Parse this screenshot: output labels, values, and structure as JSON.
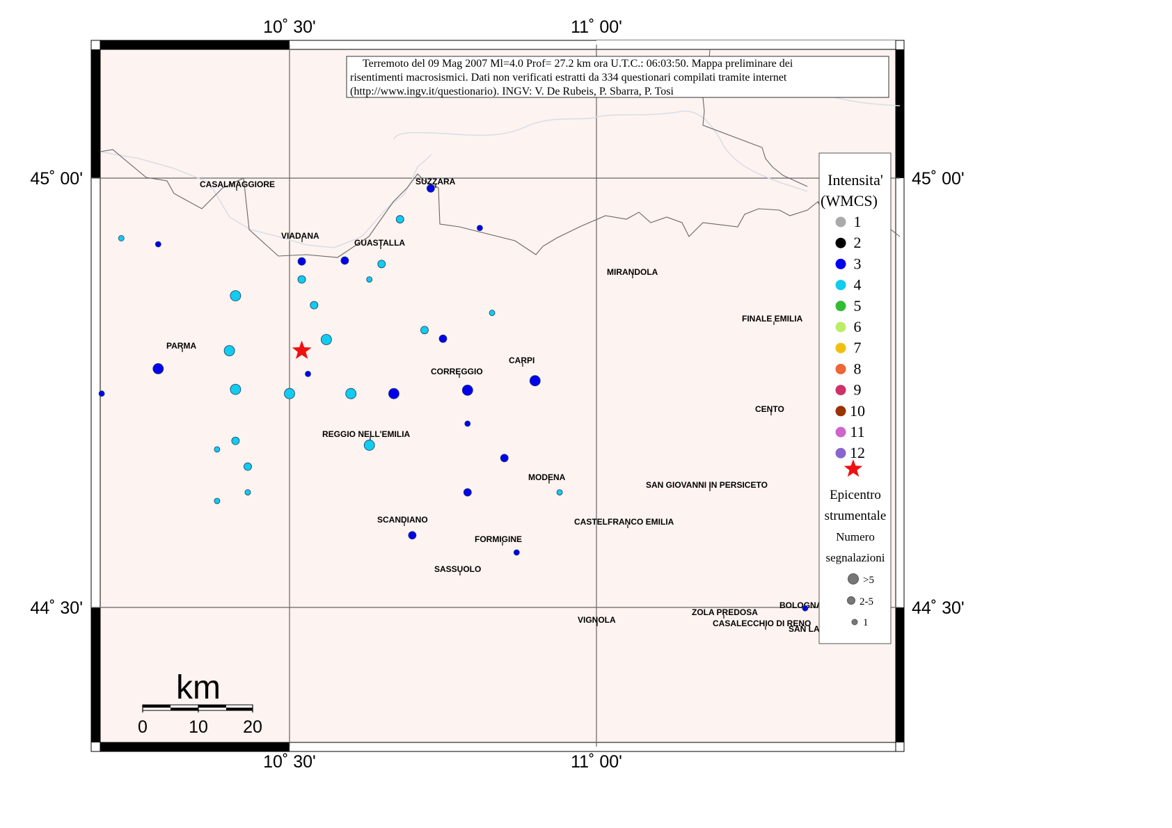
{
  "grid_labels": {
    "lon_1030": "10˚ 30'",
    "lon_1100": "11˚ 00'",
    "lat_4500": "45˚ 00'",
    "lat_4430": "44˚ 30'"
  },
  "info_box": {
    "line1": "Terremoto del 09 Mag 2007 Ml=4.0 Prof= 27.2 km ora U.T.C.: 06:03:50.  Mappa preliminare dei",
    "line2": "risentimenti macrosismici.   Dati non verificati estratti da 334 questionari compilati tramite internet",
    "line3": "(http://www.ingv.it/questionario).   INGV: V.  De Rubeis, P.  Sbarra, P.  Tosi"
  },
  "towns": [
    {
      "id": "casalmaggiore",
      "name": "CASALMAGGIORE"
    },
    {
      "id": "suzzara",
      "name": "SUZZARA"
    },
    {
      "id": "viadana",
      "name": "VIADANA"
    },
    {
      "id": "guastalla",
      "name": "GUASTALLA"
    },
    {
      "id": "mirandola",
      "name": "MIRANDOLA"
    },
    {
      "id": "finale-emilia",
      "name": "FINALE EMILIA"
    },
    {
      "id": "parma",
      "name": "PARMA"
    },
    {
      "id": "carpi",
      "name": "CARPI"
    },
    {
      "id": "correggio",
      "name": "CORREGGIO"
    },
    {
      "id": "cento",
      "name": "CENTO"
    },
    {
      "id": "reggio-emilia",
      "name": "REGGIO NELL'EMILIA"
    },
    {
      "id": "modena",
      "name": "MODENA"
    },
    {
      "id": "san-giovanni",
      "name": "SAN GIOVANNI IN PERSICETO"
    },
    {
      "id": "scandiano",
      "name": "SCANDIANO"
    },
    {
      "id": "castelfranco",
      "name": "CASTELFRANCO EMILIA"
    },
    {
      "id": "formigine",
      "name": "FORMIGINE"
    },
    {
      "id": "sassuolo",
      "name": "SASSUOLO"
    },
    {
      "id": "bologna",
      "name": "BOLOGNA"
    },
    {
      "id": "zola-predosa",
      "name": "ZOLA PREDOSA"
    },
    {
      "id": "casalecchio",
      "name": "CASALECCHIO DI RENO"
    },
    {
      "id": "vignola",
      "name": "VIGNOLA"
    },
    {
      "id": "san-lazzaro",
      "name": "SAN LA"
    }
  ],
  "observations": [
    {
      "lon": 10.226,
      "lat": 44.93,
      "intensity": 4,
      "count_class": "1"
    },
    {
      "lon": 10.286,
      "lat": 44.923,
      "intensity": 3,
      "count_class": "1"
    },
    {
      "lon": 10.194,
      "lat": 44.749,
      "intensity": 3,
      "count_class": "1"
    },
    {
      "lon": 10.286,
      "lat": 44.778,
      "intensity": 3,
      "count_class": ">5"
    },
    {
      "lon": 10.412,
      "lat": 44.863,
      "intensity": 4,
      "count_class": ">5"
    },
    {
      "lon": 10.402,
      "lat": 44.799,
      "intensity": 4,
      "count_class": ">5"
    },
    {
      "lon": 10.412,
      "lat": 44.754,
      "intensity": 4,
      "count_class": ">5"
    },
    {
      "lon": 10.412,
      "lat": 44.694,
      "intensity": 4,
      "count_class": "2-5"
    },
    {
      "lon": 10.382,
      "lat": 44.684,
      "intensity": 4,
      "count_class": "1"
    },
    {
      "lon": 10.432,
      "lat": 44.664,
      "intensity": 4,
      "count_class": "2-5"
    },
    {
      "lon": 10.382,
      "lat": 44.624,
      "intensity": 4,
      "count_class": "1"
    },
    {
      "lon": 10.432,
      "lat": 44.634,
      "intensity": 4,
      "count_class": "1"
    },
    {
      "lon": 10.52,
      "lat": 44.903,
      "intensity": 3,
      "count_class": "2-5"
    },
    {
      "lon": 10.52,
      "lat": 44.882,
      "intensity": 4,
      "count_class": "2-5"
    },
    {
      "lon": 10.54,
      "lat": 44.852,
      "intensity": 4,
      "count_class": "2-5"
    },
    {
      "lon": 10.56,
      "lat": 44.812,
      "intensity": 4,
      "count_class": ">5"
    },
    {
      "lon": 10.53,
      "lat": 44.772,
      "intensity": 3,
      "count_class": "1"
    },
    {
      "lon": 10.5,
      "lat": 44.749,
      "intensity": 4,
      "count_class": ">5"
    },
    {
      "lon": 10.59,
      "lat": 44.904,
      "intensity": 3,
      "count_class": "2-5"
    },
    {
      "lon": 10.63,
      "lat": 44.882,
      "intensity": 4,
      "count_class": "1"
    },
    {
      "lon": 10.65,
      "lat": 44.9,
      "intensity": 4,
      "count_class": "2-5"
    },
    {
      "lon": 10.6,
      "lat": 44.749,
      "intensity": 4,
      "count_class": ">5"
    },
    {
      "lon": 10.63,
      "lat": 44.689,
      "intensity": 4,
      "count_class": ">5"
    },
    {
      "lon": 10.67,
      "lat": 44.749,
      "intensity": 3,
      "count_class": ">5"
    },
    {
      "lon": 10.68,
      "lat": 44.952,
      "intensity": 4,
      "count_class": "2-5"
    },
    {
      "lon": 10.73,
      "lat": 44.988,
      "intensity": 3,
      "count_class": "2-5"
    },
    {
      "lon": 10.72,
      "lat": 44.823,
      "intensity": 4,
      "count_class": "2-5"
    },
    {
      "lon": 10.75,
      "lat": 44.813,
      "intensity": 3,
      "count_class": "2-5"
    },
    {
      "lon": 10.79,
      "lat": 44.753,
      "intensity": 3,
      "count_class": ">5"
    },
    {
      "lon": 10.79,
      "lat": 44.714,
      "intensity": 3,
      "count_class": "1"
    },
    {
      "lon": 10.79,
      "lat": 44.634,
      "intensity": 3,
      "count_class": "2-5"
    },
    {
      "lon": 10.85,
      "lat": 44.674,
      "intensity": 3,
      "count_class": "2-5"
    },
    {
      "lon": 10.81,
      "lat": 44.942,
      "intensity": 3,
      "count_class": "1"
    },
    {
      "lon": 10.83,
      "lat": 44.843,
      "intensity": 4,
      "count_class": "1"
    },
    {
      "lon": 10.9,
      "lat": 44.764,
      "intensity": 3,
      "count_class": ">5"
    },
    {
      "lon": 10.94,
      "lat": 44.634,
      "intensity": 4,
      "count_class": "1"
    },
    {
      "lon": 10.7,
      "lat": 44.584,
      "intensity": 3,
      "count_class": "2-5"
    },
    {
      "lon": 10.87,
      "lat": 44.564,
      "intensity": 3,
      "count_class": "1"
    },
    {
      "lon": 11.34,
      "lat": 44.499,
      "intensity": 3,
      "count_class": "1"
    }
  ],
  "epicenter": {
    "lon": 10.52,
    "lat": 44.799
  },
  "legend": {
    "title_line1": "Intensita'",
    "title_line2": "(WMCS)",
    "intensities": [
      {
        "label": "1",
        "color": "#aaaaaa"
      },
      {
        "label": "2",
        "color": "#000000"
      },
      {
        "label": "3",
        "color": "#0000ee"
      },
      {
        "label": "4",
        "color": "#11ccee"
      },
      {
        "label": "5",
        "color": "#33bb33"
      },
      {
        "label": "6",
        "color": "#bbee66"
      },
      {
        "label": "7",
        "color": "#f0c010"
      },
      {
        "label": "8",
        "color": "#ee6633"
      },
      {
        "label": "9",
        "color": "#cc3366"
      },
      {
        "label": "10",
        "color": "#993300"
      },
      {
        "label": "11",
        "color": "#cc66cc"
      },
      {
        "label": "12",
        "color": "#8866cc"
      }
    ],
    "epicenter_line1": "Epicentro",
    "epicenter_line2": "strumentale",
    "epicenter_color": "#cc0000",
    "count_title_line1": "Numero",
    "count_title_line2": "segnalazioni",
    "count_classes": [
      ">5",
      "2-5",
      "1"
    ]
  },
  "scale_bar": {
    "unit": "km",
    "ticks": [
      "0",
      "10",
      "20"
    ]
  }
}
